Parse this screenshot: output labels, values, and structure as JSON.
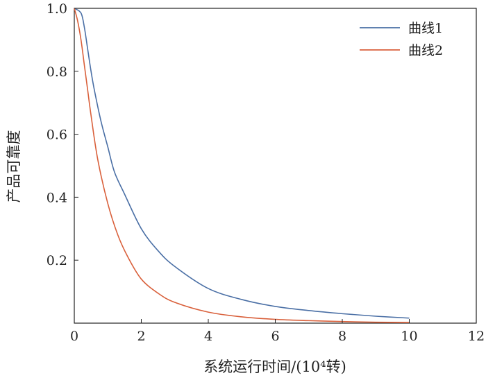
{
  "chart_data": {
    "type": "line",
    "title": "",
    "xlabel": "系统运行时间/(10⁴转)",
    "ylabel": "产品可靠度",
    "xlim": [
      0,
      12
    ],
    "ylim": [
      0,
      1.0
    ],
    "x_ticks": [
      "0",
      "2",
      "4",
      "6",
      "8",
      "10",
      "12"
    ],
    "y_ticks": [
      "0.2",
      "0.4",
      "0.6",
      "0.8",
      "1.0"
    ],
    "grid": false,
    "legend_position": "top-right",
    "series": [
      {
        "name": "曲线1",
        "color": "#4a6fa5",
        "x": [
          0,
          0.2,
          0.3,
          0.4,
          0.5,
          0.6,
          0.8,
          1.0,
          1.2,
          1.5,
          2.0,
          2.5,
          3.0,
          4.0,
          5.0,
          6.0,
          7.0,
          8.0,
          9.0,
          10.0
        ],
        "y": [
          1.0,
          0.985,
          0.94,
          0.87,
          0.8,
          0.74,
          0.64,
          0.56,
          0.48,
          0.41,
          0.3,
          0.23,
          0.18,
          0.11,
          0.075,
          0.053,
          0.04,
          0.03,
          0.022,
          0.016
        ]
      },
      {
        "name": "曲线2",
        "color": "#d9603b",
        "x": [
          0,
          0.1,
          0.2,
          0.3,
          0.4,
          0.5,
          0.7,
          1.0,
          1.3,
          1.6,
          2.0,
          2.5,
          3.0,
          4.0,
          5.0,
          6.0,
          7.0,
          8.0,
          9.0,
          10.0
        ],
        "y": [
          1.0,
          0.96,
          0.9,
          0.82,
          0.74,
          0.66,
          0.52,
          0.38,
          0.28,
          0.21,
          0.14,
          0.095,
          0.066,
          0.035,
          0.02,
          0.012,
          0.008,
          0.005,
          0.003,
          0.002
        ]
      }
    ]
  }
}
